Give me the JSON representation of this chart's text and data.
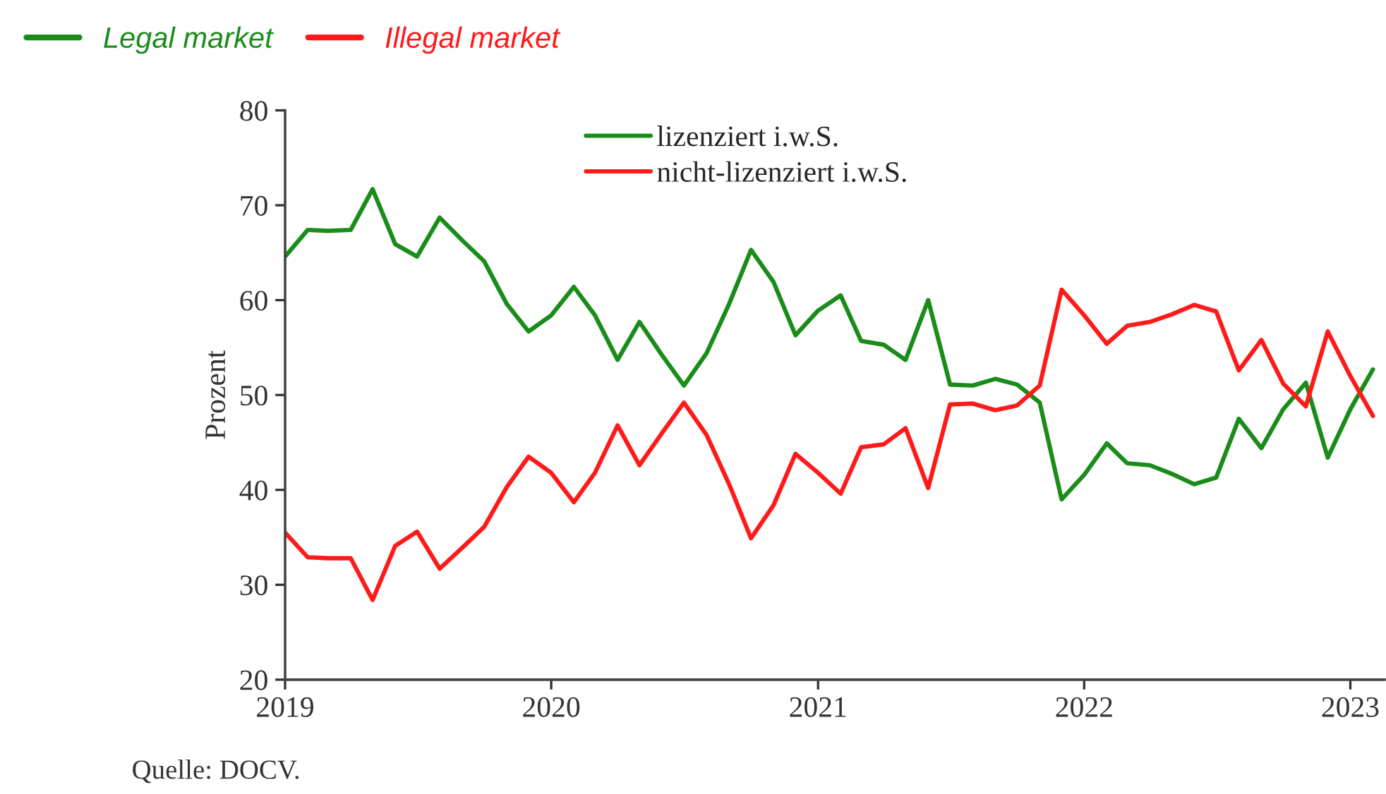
{
  "chart_data": {
    "type": "line",
    "ylabel": "Prozent",
    "legend": "top",
    "grid": false,
    "line_style": "solid",
    "marker": "none",
    "x": [
      "2019-01",
      "2019-02",
      "2019-03",
      "2019-04",
      "2019-05",
      "2019-06",
      "2019-07",
      "2019-08",
      "2019-09",
      "2019-10",
      "2019-11",
      "2019-12",
      "2020-01",
      "2020-02",
      "2020-03",
      "2020-04",
      "2020-05",
      "2020-06",
      "2020-07",
      "2020-08",
      "2020-09",
      "2020-10",
      "2020-11",
      "2020-12",
      "2021-01",
      "2021-02",
      "2021-03",
      "2021-04",
      "2021-05",
      "2021-06",
      "2021-07",
      "2021-08",
      "2021-09",
      "2021-10",
      "2021-11",
      "2021-12",
      "2022-01",
      "2022-02",
      "2022-03",
      "2022-04",
      "2022-05",
      "2022-06",
      "2022-07",
      "2022-08",
      "2022-09",
      "2022-10",
      "2022-11",
      "2022-12",
      "2023-01",
      "2023-02"
    ],
    "series": [
      {
        "name": "lizenziert i.w.S.",
        "color": "#1a8c1a",
        "values": [
          64.6,
          67.4,
          67.3,
          67.4,
          71.7,
          65.9,
          64.6,
          68.7,
          66.3,
          64.1,
          59.6,
          56.7,
          58.4,
          61.4,
          58.4,
          53.7,
          57.7,
          54.2,
          51.0,
          54.4,
          59.6,
          65.3,
          61.9,
          56.3,
          58.9,
          60.5,
          55.7,
          55.3,
          53.7,
          60.0,
          51.1,
          51.0,
          51.7,
          51.1,
          49.2,
          39.0,
          41.6,
          44.9,
          42.8,
          42.6,
          41.7,
          40.6,
          41.3,
          47.5,
          44.4,
          48.5,
          51.3,
          43.4,
          48.5,
          52.7
        ]
      },
      {
        "name": "nicht-lizenziert i.w.S.",
        "color": "#ff1a1a",
        "values": [
          35.5,
          32.9,
          32.8,
          32.8,
          28.4,
          34.1,
          35.6,
          31.7,
          33.9,
          36.1,
          40.3,
          43.5,
          41.8,
          38.7,
          41.8,
          46.8,
          42.6,
          46.0,
          49.2,
          45.8,
          40.6,
          34.9,
          38.4,
          43.8,
          41.8,
          39.6,
          44.5,
          44.8,
          46.5,
          40.2,
          49.0,
          49.1,
          48.4,
          48.9,
          51.0,
          61.1,
          58.4,
          55.4,
          57.3,
          57.7,
          58.5,
          59.5,
          58.8,
          52.6,
          55.8,
          51.2,
          48.8,
          56.7,
          52.0,
          47.8
        ]
      }
    ],
    "xlim": [
      "2019-01-01",
      "2023-02-17"
    ],
    "xticks": [
      "2019",
      "2020",
      "2021",
      "2022",
      "2023"
    ],
    "ylim": [
      20,
      80
    ],
    "yticks": [
      20,
      30,
      40,
      50,
      60,
      70,
      80
    ],
    "annotations": [
      "Legal market",
      "Illegal market",
      "Quelle: DOCV."
    ]
  }
}
